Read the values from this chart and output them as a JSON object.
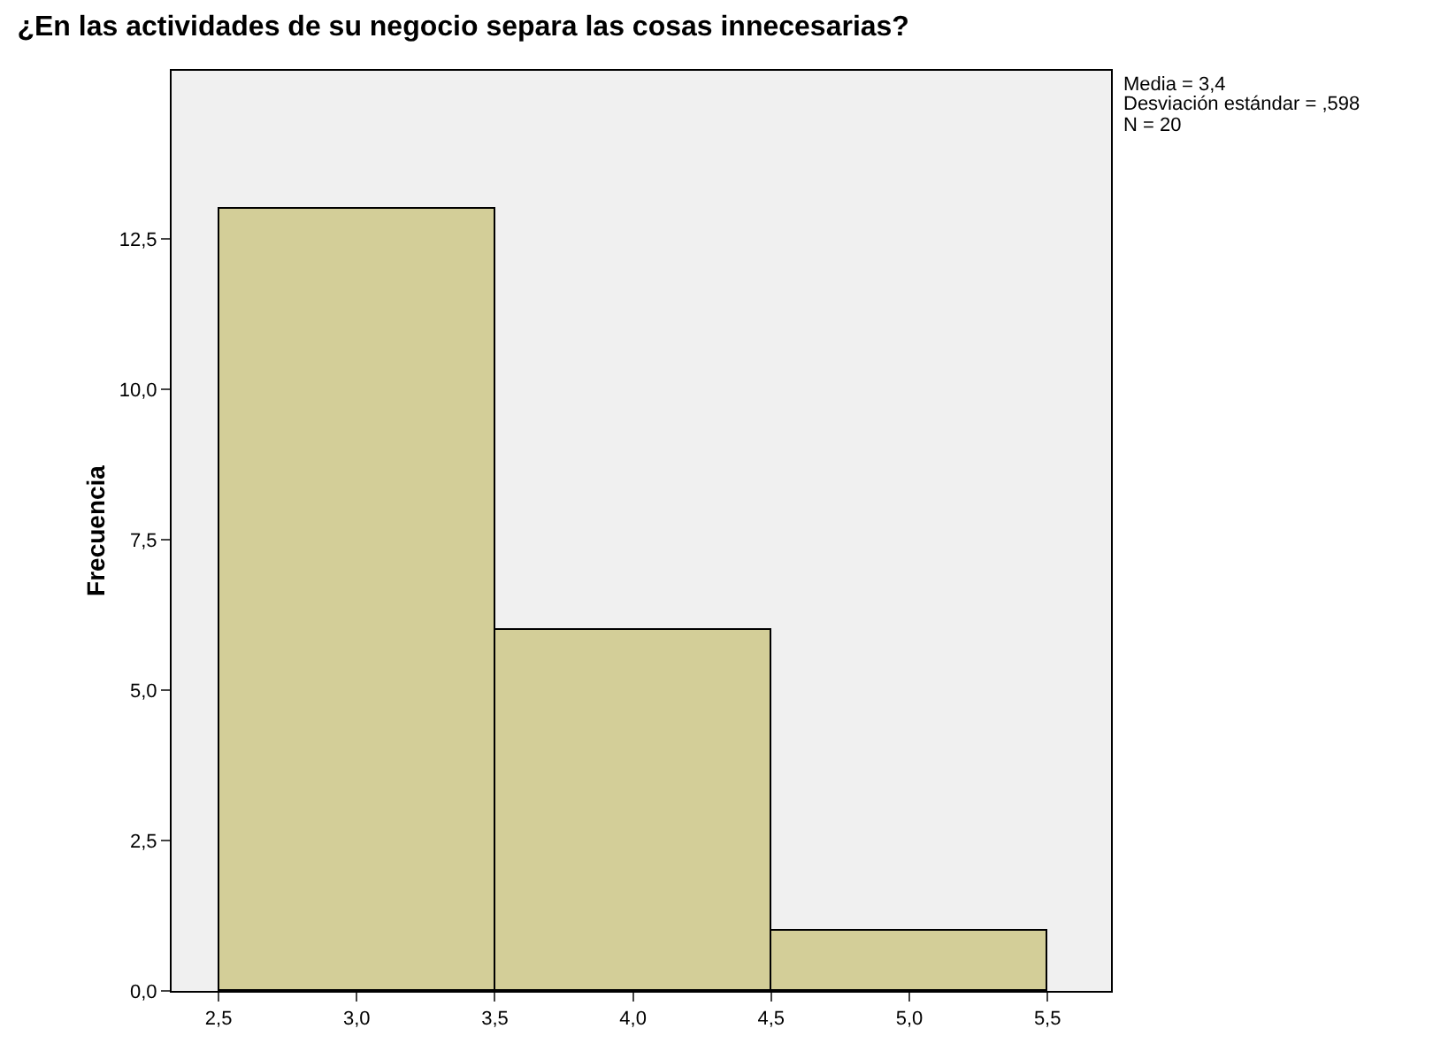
{
  "chart_data": {
    "type": "histogram",
    "title": "¿En las actividades de su negocio separa las cosas innecesarias?",
    "ylabel": "Frecuencia",
    "bins": [
      2.5,
      3.5,
      4.5,
      5.5
    ],
    "values": [
      13,
      6,
      1
    ],
    "color": "#d3ce98",
    "xlim": [
      2.33,
      5.73
    ],
    "xticks": [
      {
        "value": 2.5,
        "label": "2,5"
      },
      {
        "value": 3,
        "label": "3,0"
      },
      {
        "value": 3.5,
        "label": "3,5"
      },
      {
        "value": 4,
        "label": "4,0"
      },
      {
        "value": 4.5,
        "label": "4,5"
      },
      {
        "value": 5,
        "label": "5,0"
      },
      {
        "value": 5.5,
        "label": "5,5"
      }
    ],
    "ylim": [
      0,
      15.3
    ],
    "yticks": [
      {
        "value": 0,
        "label": "0,0"
      },
      {
        "value": 2.5,
        "label": "2,5"
      },
      {
        "value": 5,
        "label": "5,0"
      },
      {
        "value": 7.5,
        "label": "7,5"
      },
      {
        "value": 10,
        "label": "10,0"
      },
      {
        "value": 12.5,
        "label": "12,5"
      }
    ],
    "grid": false,
    "annotations": [
      "Media = 3,4",
      "Desviación estándar = ,598",
      "N = 20"
    ]
  }
}
